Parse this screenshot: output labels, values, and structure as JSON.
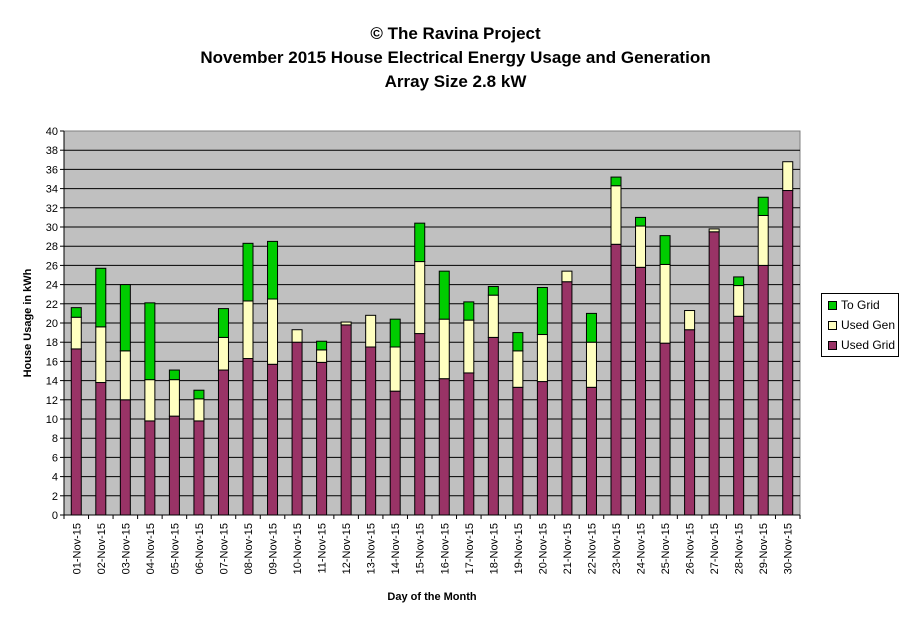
{
  "chart_data": {
    "type": "bar",
    "stacked": true,
    "title_lines": [
      "© The Ravina Project",
      "November 2015 House Electrical Energy Usage and Generation",
      "Array Size 2.8 kW"
    ],
    "xlabel": "Day of the Month",
    "ylabel": "House Usage in kWh",
    "ylim": [
      0,
      40
    ],
    "ytick_step": 2,
    "grid": true,
    "legend_position": "right",
    "categories": [
      "01-Nov-15",
      "02-Nov-15",
      "03-Nov-15",
      "04-Nov-15",
      "05-Nov-15",
      "06-Nov-15",
      "07-Nov-15",
      "08-Nov-15",
      "09-Nov-15",
      "10-Nov-15",
      "11-Nov-15",
      "12-Nov-15",
      "13-Nov-15",
      "14-Nov-15",
      "15-Nov-15",
      "16-Nov-15",
      "17-Nov-15",
      "18-Nov-15",
      "19-Nov-15",
      "20-Nov-15",
      "21-Nov-15",
      "22-Nov-15",
      "23-Nov-15",
      "24-Nov-15",
      "25-Nov-15",
      "26-Nov-15",
      "27-Nov-15",
      "28-Nov-15",
      "29-Nov-15",
      "30-Nov-15"
    ],
    "series": [
      {
        "name": "Used Grid",
        "color": "#993366",
        "values": [
          17.3,
          13.8,
          12.0,
          9.8,
          10.3,
          9.8,
          15.1,
          16.3,
          15.7,
          18.0,
          15.9,
          19.8,
          17.5,
          12.9,
          18.9,
          14.2,
          14.8,
          18.5,
          13.3,
          13.9,
          24.3,
          13.3,
          28.2,
          25.8,
          17.9,
          19.3,
          29.5,
          20.7,
          26.0,
          33.8
        ]
      },
      {
        "name": "Used Gen",
        "color": "#FFFFC0",
        "values": [
          3.3,
          5.8,
          5.1,
          4.3,
          3.8,
          2.3,
          3.4,
          6.0,
          6.8,
          1.3,
          1.3,
          0.3,
          3.3,
          4.6,
          7.5,
          6.2,
          5.5,
          4.4,
          3.8,
          4.9,
          1.1,
          4.7,
          6.1,
          4.3,
          8.2,
          2.0,
          0.3,
          3.2,
          5.2,
          3.0
        ]
      },
      {
        "name": "To Grid",
        "color": "#00CC00",
        "values": [
          1.0,
          6.1,
          6.9,
          8.0,
          1.0,
          0.9,
          3.0,
          6.0,
          6.0,
          0,
          0.9,
          0,
          0,
          2.9,
          4.0,
          5.0,
          1.9,
          0.9,
          1.9,
          4.9,
          0,
          3.0,
          0.9,
          0.9,
          3.0,
          0,
          0,
          0.9,
          1.9,
          0
        ]
      }
    ]
  }
}
